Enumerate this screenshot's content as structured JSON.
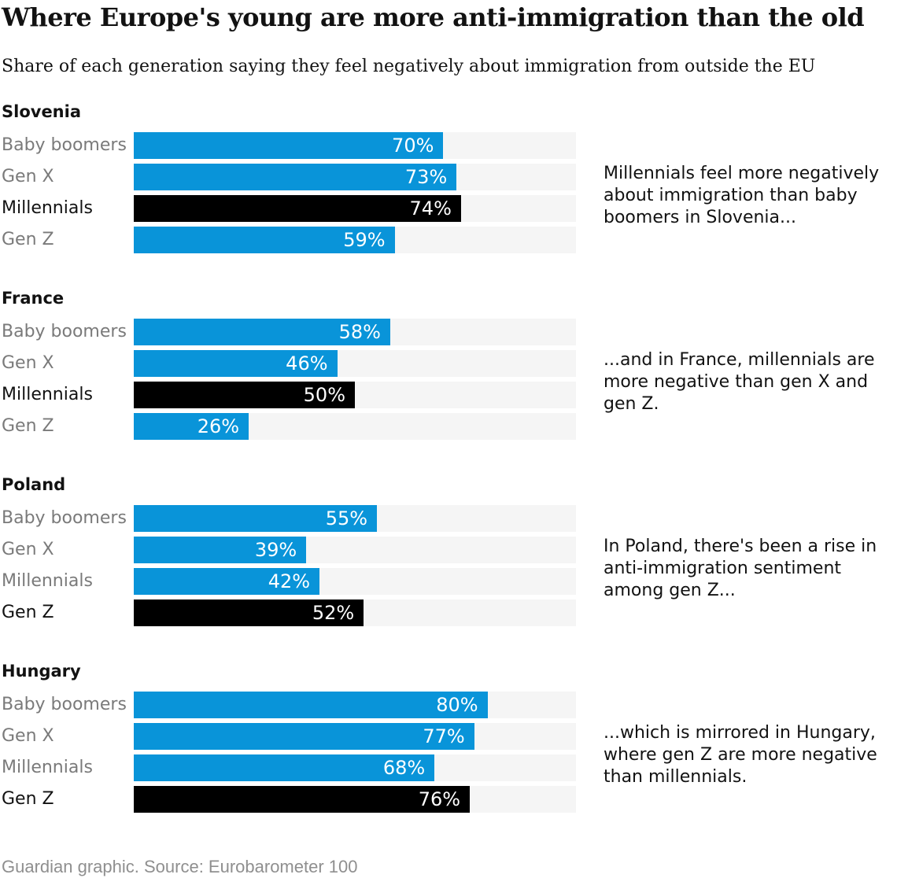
{
  "header": {
    "title": "Where Europe's young are more anti-immigration than the old",
    "subtitle": "Share of each generation saying they feel negatively about immigration from outside the EU"
  },
  "chart_data": {
    "type": "bar",
    "orientation": "horizontal",
    "unit": "%",
    "xlim": [
      0,
      100
    ],
    "grid": false,
    "legend": "none",
    "bar_color": "#0994d9",
    "highlight_color": "#000000",
    "track_color": "#f5f5f5",
    "value_label_color": "#ffffff",
    "categories": [
      "Baby boomers",
      "Gen X",
      "Millennials",
      "Gen Z"
    ],
    "groups": [
      {
        "country": "Slovenia",
        "values": [
          70,
          73,
          74,
          59
        ],
        "highlight_index": 2,
        "annotation": "Millennials feel more negatively about immigration than baby boomers in Slovenia..."
      },
      {
        "country": "France",
        "values": [
          58,
          46,
          50,
          26
        ],
        "highlight_index": 2,
        "annotation": "...and in France, millennials are more negative than gen X and gen Z."
      },
      {
        "country": "Poland",
        "values": [
          55,
          39,
          42,
          52
        ],
        "highlight_index": 3,
        "annotation": "In Poland, there's been a rise in anti-immigration sentiment among gen Z..."
      },
      {
        "country": "Hungary",
        "values": [
          80,
          77,
          68,
          76
        ],
        "highlight_index": 3,
        "annotation": "...which is mirrored in Hungary, where gen Z are more negative than millennials."
      }
    ]
  },
  "footer": {
    "credit": "Guardian graphic. Source: Eurobarometer 100"
  }
}
